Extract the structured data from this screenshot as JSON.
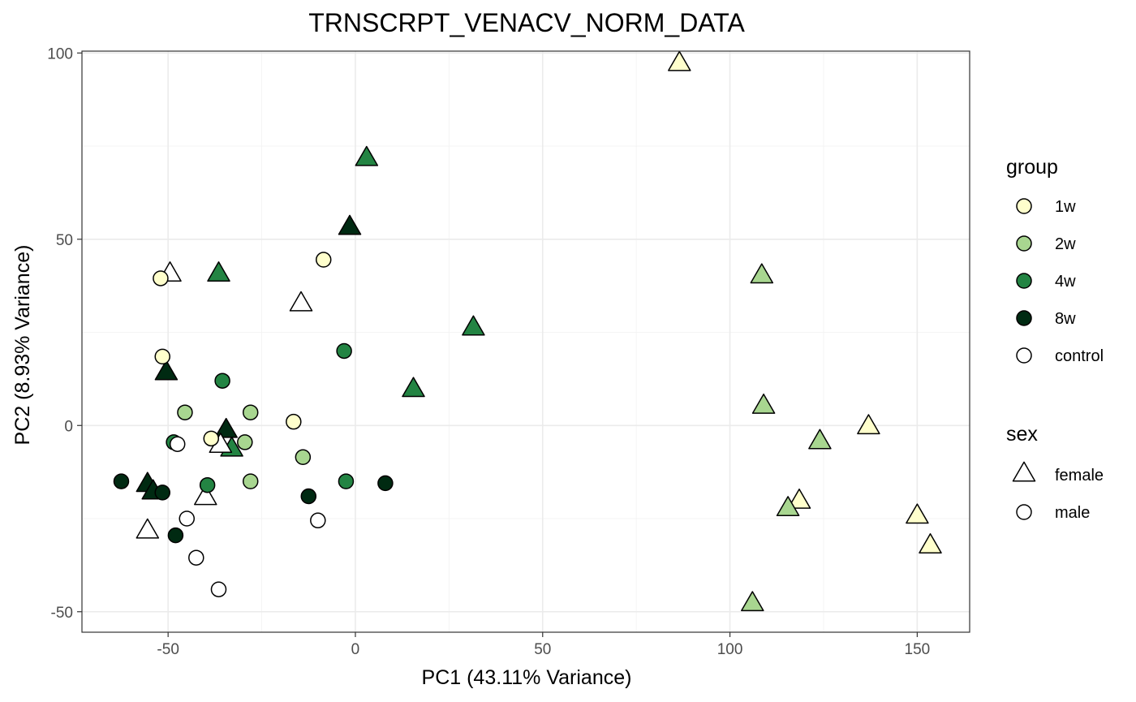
{
  "chart_data": {
    "type": "scatter",
    "title": "TRNSCRPT_VENACV_NORM_DATA",
    "xlabel": "PC1 (43.11% Variance)",
    "ylabel": "PC2 (8.93% Variance)",
    "xlim": [
      -73,
      164
    ],
    "ylim": [
      -55.5,
      100.5
    ],
    "x_ticks": [
      -50,
      0,
      50,
      100,
      150
    ],
    "y_ticks": [
      -50,
      0,
      50,
      100
    ],
    "x_tick_labels": [
      "-50",
      "0",
      "50",
      "100",
      "150"
    ],
    "y_tick_labels": [
      "-50",
      "0",
      "50",
      "100"
    ],
    "grid": true,
    "legend_position": "right",
    "legends": {
      "group": {
        "title": "group",
        "items": [
          {
            "label": "1w",
            "color": "#ffffcc"
          },
          {
            "label": "2w",
            "color": "#a8d690"
          },
          {
            "label": "4w",
            "color": "#238443"
          },
          {
            "label": "8w",
            "color": "#002a12"
          },
          {
            "label": "control",
            "color": "#ffffff"
          }
        ]
      },
      "sex": {
        "title": "sex",
        "items": [
          {
            "label": "female",
            "shape": "triangle"
          },
          {
            "label": "male",
            "shape": "circle"
          }
        ]
      }
    },
    "points": [
      {
        "x": 86.5,
        "y": 97,
        "group": "1w",
        "sex": "female"
      },
      {
        "x": 137,
        "y": -0.5,
        "group": "1w",
        "sex": "female"
      },
      {
        "x": 150,
        "y": -24.5,
        "group": "1w",
        "sex": "female"
      },
      {
        "x": 153.5,
        "y": -32.5,
        "group": "1w",
        "sex": "female"
      },
      {
        "x": 118.5,
        "y": -20.5,
        "group": "1w",
        "sex": "female"
      },
      {
        "x": 108.5,
        "y": 40,
        "group": "2w",
        "sex": "female"
      },
      {
        "x": 109,
        "y": 5,
        "group": "2w",
        "sex": "female"
      },
      {
        "x": 124,
        "y": -4.5,
        "group": "2w",
        "sex": "female"
      },
      {
        "x": 115.5,
        "y": -22.5,
        "group": "2w",
        "sex": "female"
      },
      {
        "x": 106,
        "y": -48,
        "group": "2w",
        "sex": "female"
      },
      {
        "x": 3,
        "y": 71.5,
        "group": "4w",
        "sex": "female"
      },
      {
        "x": -36.5,
        "y": 40.5,
        "group": "4w",
        "sex": "female"
      },
      {
        "x": 31.5,
        "y": 26,
        "group": "4w",
        "sex": "female"
      },
      {
        "x": 15.5,
        "y": 9.5,
        "group": "4w",
        "sex": "female"
      },
      {
        "x": -33,
        "y": -6.5,
        "group": "4w",
        "sex": "female"
      },
      {
        "x": -1.5,
        "y": 53,
        "group": "8w",
        "sex": "female"
      },
      {
        "x": -50.5,
        "y": 14,
        "group": "8w",
        "sex": "female"
      },
      {
        "x": -34.5,
        "y": -1.5,
        "group": "8w",
        "sex": "female"
      },
      {
        "x": -55.5,
        "y": -16,
        "group": "8w",
        "sex": "female"
      },
      {
        "x": -54,
        "y": -18,
        "group": "8w",
        "sex": "female"
      },
      {
        "x": -49.5,
        "y": 40.5,
        "group": "control",
        "sex": "female"
      },
      {
        "x": -14.5,
        "y": 32.5,
        "group": "control",
        "sex": "female"
      },
      {
        "x": -36,
        "y": -5.5,
        "group": "control",
        "sex": "female"
      },
      {
        "x": -40,
        "y": -19.5,
        "group": "control",
        "sex": "female"
      },
      {
        "x": -55.5,
        "y": -28.5,
        "group": "control",
        "sex": "female"
      },
      {
        "x": -52,
        "y": 39.5,
        "group": "1w",
        "sex": "male"
      },
      {
        "x": -8.5,
        "y": 44.5,
        "group": "1w",
        "sex": "male"
      },
      {
        "x": -51.5,
        "y": 18.5,
        "group": "1w",
        "sex": "male"
      },
      {
        "x": -16.5,
        "y": 1,
        "group": "1w",
        "sex": "male"
      },
      {
        "x": -38.5,
        "y": -3.5,
        "group": "1w",
        "sex": "male"
      },
      {
        "x": -45.5,
        "y": 3.5,
        "group": "2w",
        "sex": "male"
      },
      {
        "x": -28,
        "y": 3.5,
        "group": "2w",
        "sex": "male"
      },
      {
        "x": -29.5,
        "y": -4.5,
        "group": "2w",
        "sex": "male"
      },
      {
        "x": -14,
        "y": -8.5,
        "group": "2w",
        "sex": "male"
      },
      {
        "x": -28,
        "y": -15,
        "group": "2w",
        "sex": "male"
      },
      {
        "x": -35.5,
        "y": 12,
        "group": "4w",
        "sex": "male"
      },
      {
        "x": -3,
        "y": 20,
        "group": "4w",
        "sex": "male"
      },
      {
        "x": -48.5,
        "y": -4.5,
        "group": "4w",
        "sex": "male"
      },
      {
        "x": -39.5,
        "y": -16,
        "group": "4w",
        "sex": "male"
      },
      {
        "x": -2.5,
        "y": -15,
        "group": "4w",
        "sex": "male"
      },
      {
        "x": -62.5,
        "y": -15,
        "group": "8w",
        "sex": "male"
      },
      {
        "x": -51.5,
        "y": -18,
        "group": "8w",
        "sex": "male"
      },
      {
        "x": -48,
        "y": -29.5,
        "group": "8w",
        "sex": "male"
      },
      {
        "x": -12.5,
        "y": -19,
        "group": "8w",
        "sex": "male"
      },
      {
        "x": 8,
        "y": -15.5,
        "group": "8w",
        "sex": "male"
      },
      {
        "x": -47.5,
        "y": -5,
        "group": "control",
        "sex": "male"
      },
      {
        "x": -45,
        "y": -25,
        "group": "control",
        "sex": "male"
      },
      {
        "x": -42.5,
        "y": -35.5,
        "group": "control",
        "sex": "male"
      },
      {
        "x": -10,
        "y": -25.5,
        "group": "control",
        "sex": "male"
      },
      {
        "x": -36.5,
        "y": -44,
        "group": "control",
        "sex": "male"
      }
    ]
  }
}
